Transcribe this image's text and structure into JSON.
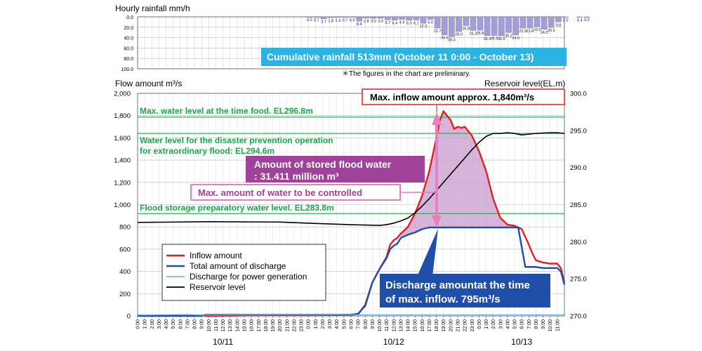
{
  "chart_data": [
    {
      "type": "bar",
      "title": "Hourly rainfall mm/h",
      "ylim": [
        100,
        0
      ],
      "y_ticks": [
        "0.0",
        "20.0",
        "40.0",
        "60.0",
        "80.0",
        "100.0"
      ],
      "bar_start_hour": 24,
      "values": [
        0.2,
        0.7,
        3.7,
        1.8,
        1.3,
        0.7,
        0.9,
        8.4,
        2.8,
        3.0,
        3.0,
        5.7,
        6.4,
        4.9,
        6.3,
        6.1,
        12.3,
        5.0,
        21.7,
        34.6,
        38.4,
        28.0,
        16.8,
        26.2,
        25.8,
        36.4,
        35.9,
        36.6,
        30.2,
        34.9,
        21.9,
        21.8,
        19.0,
        24.0,
        20.5,
        9.8,
        0.5,
        0,
        0.4,
        0.2
      ],
      "value_labels": [
        "0.2",
        "0.7",
        "3.7",
        "1.8",
        "1.3",
        "0.7",
        "0.9",
        "8.4",
        "2.8",
        "3.0",
        "3.0",
        "5.7",
        "6.4",
        "4.9",
        "6.3",
        "6.1",
        "12.3",
        "5.0",
        "21.7",
        "34.6",
        "38.4",
        "28.0",
        "16.8",
        "26.2",
        "25.8",
        "36.4",
        "35.9",
        "36.6",
        "30.2",
        "34.9",
        "21.9",
        "21.8",
        "19.0",
        "24.0",
        "20.5",
        "9.8",
        "0.5",
        "",
        "0.4",
        "0.2"
      ],
      "cumulative_note": "Cumulative rainfall 513mm (October 11 0:00 - October 13)",
      "note": "＊The figures in the chart are preliminary.",
      "bar_color": "#a39ed6"
    },
    {
      "type": "line",
      "ylabel_left": "Flow amount m³/s",
      "ylabel_right": "Reservoir level(EL.m)",
      "ylim_left": [
        0,
        2000
      ],
      "ylim_right": [
        270,
        300
      ],
      "y_ticks_left": [
        "0",
        "200",
        "400",
        "600",
        "800",
        "1,000",
        "1,200",
        "1,400",
        "1,600",
        "1,800",
        "2,000"
      ],
      "y_ticks_right": [
        "270.0",
        "275.0",
        "280.0",
        "285.0",
        "290.0",
        "295.0",
        "300.0"
      ],
      "x_ticks": [
        "0:00",
        "1:00",
        "2:00",
        "3:00",
        "4:00",
        "5:00",
        "6:00",
        "7:00",
        "8:00",
        "9:00",
        "10:00",
        "11:00",
        "12:00",
        "13:00",
        "14:00",
        "15:00",
        "16:00",
        "17:00",
        "18:00",
        "19:00",
        "20:00",
        "21:00",
        "22:00",
        "23:00",
        "0:00",
        "1:00",
        "2:00",
        "3:00",
        "4:00",
        "5:00",
        "6:00",
        "7:00",
        "8:00",
        "9:00",
        "10:00",
        "11:00",
        "12:00",
        "13:00",
        "14:00",
        "15:00",
        "16:00",
        "17:00",
        "18:00",
        "19:00",
        "20:00",
        "21:00",
        "22:00",
        "23:00",
        "0:00",
        "1:00",
        "2:00",
        "3:00",
        "4:00",
        "5:00",
        "6:00",
        "7:00",
        "8:00",
        "9:00",
        "10:00",
        "11:00"
      ],
      "date_labels": [
        {
          "label": "10/11",
          "hour": 12
        },
        {
          "label": "10/12",
          "hour": 36
        },
        {
          "label": "10/13",
          "hour": 54
        }
      ],
      "x_range_hours": [
        0,
        60
      ],
      "series": [
        {
          "name": "Inflow amount",
          "color": "#e31f26",
          "axis": "left",
          "x": [
            0,
            9,
            9.5,
            17,
            24,
            30,
            31,
            32,
            33,
            34,
            35,
            35.5,
            36,
            36.5,
            37,
            38,
            39,
            40,
            41,
            41.5,
            42,
            42.5,
            43,
            44,
            44.5,
            45,
            45.5,
            46,
            47,
            48,
            49,
            50,
            51,
            52,
            53,
            54,
            55,
            55.5,
            56,
            57,
            58,
            59,
            59.5,
            60
          ],
          "y": [
            5,
            5,
            0,
            5,
            5,
            10,
            15,
            100,
            300,
            420,
            530,
            640,
            680,
            700,
            740,
            800,
            920,
            1080,
            1300,
            1450,
            1600,
            1760,
            1840,
            1760,
            1680,
            1700,
            1690,
            1700,
            1620,
            1480,
            1300,
            1050,
            880,
            820,
            810,
            780,
            640,
            560,
            500,
            480,
            470,
            470,
            430,
            300
          ]
        },
        {
          "name": "Total amount of discharge",
          "color": "#1f4fa8",
          "axis": "left",
          "x": [
            0,
            9,
            9.5,
            17,
            24,
            30,
            31,
            32,
            33,
            34,
            35,
            35.5,
            36,
            36.5,
            37,
            38,
            39,
            40,
            41,
            42,
            43,
            53,
            53.5,
            54,
            54.5,
            55,
            56,
            57,
            58,
            59,
            59.5,
            60
          ],
          "y": [
            0,
            0,
            10,
            10,
            10,
            10,
            20,
            90,
            300,
            420,
            520,
            600,
            630,
            650,
            700,
            730,
            750,
            780,
            795,
            795,
            795,
            795,
            795,
            620,
            440,
            440,
            440,
            430,
            430,
            430,
            400,
            280
          ]
        },
        {
          "name": "Discharge for power generation",
          "color": "#6ab0e0",
          "axis": "left",
          "x": [
            0,
            7,
            9,
            17,
            30,
            60
          ],
          "y": [
            8,
            12,
            8,
            10,
            10,
            10
          ]
        },
        {
          "name": "Reservoir level",
          "color": "#000000",
          "axis": "right",
          "x": [
            0,
            10,
            20,
            24,
            30,
            34,
            35,
            36,
            37,
            38,
            39,
            40,
            41,
            42,
            43,
            44,
            45,
            46,
            47,
            48,
            49,
            50,
            51,
            52,
            53,
            54,
            55,
            56,
            57,
            58,
            59,
            60
          ],
          "y": [
            282.6,
            282.7,
            282.65,
            282.5,
            282.3,
            282.2,
            282.3,
            282.5,
            282.8,
            283.2,
            283.9,
            284.8,
            285.8,
            286.9,
            288.0,
            289.1,
            290.2,
            291.3,
            292.4,
            293.4,
            294.2,
            294.6,
            294.6,
            294.7,
            294.6,
            294.4,
            294.5,
            294.6,
            294.65,
            294.7,
            294.7,
            294.6
          ]
        }
      ],
      "reference_lines": [
        {
          "label": "Max. water level at the time food. EL296.8m",
          "value": 296.8,
          "color": "#1aa84a"
        },
        {
          "label": "Water level for the disaster prevention operation for extraordinary flood: EL294.6m",
          "label_line1": "Water level for the disaster prevention operation",
          "label_line2": "for extraordinary flood: EL294.6m",
          "value": 294.6,
          "color": "#1aa84a"
        },
        {
          "label": "Flood storage preparatory water level. EL283.8m",
          "value": 283.8,
          "color": "#1aa84a"
        }
      ],
      "annotations": {
        "max_inflow": "Max. inflow amount approx. 1,840m³/s",
        "stored_line1": "Amount of stored flood water",
        "stored_line2": ": 31.411 million m³",
        "controlled": "Max. amount of water to be controlled",
        "discharge_line1": "Discharge amountat the time",
        "discharge_line2": "of max. inflow. 795m³/s"
      },
      "colors": {
        "fill": "#c99bce",
        "arrow": "#e77fc0",
        "storage_text_bg": "#a0429a",
        "discharge_bg": "#1f4fa8",
        "cumulative_bg": "#2bb3e4"
      }
    }
  ]
}
